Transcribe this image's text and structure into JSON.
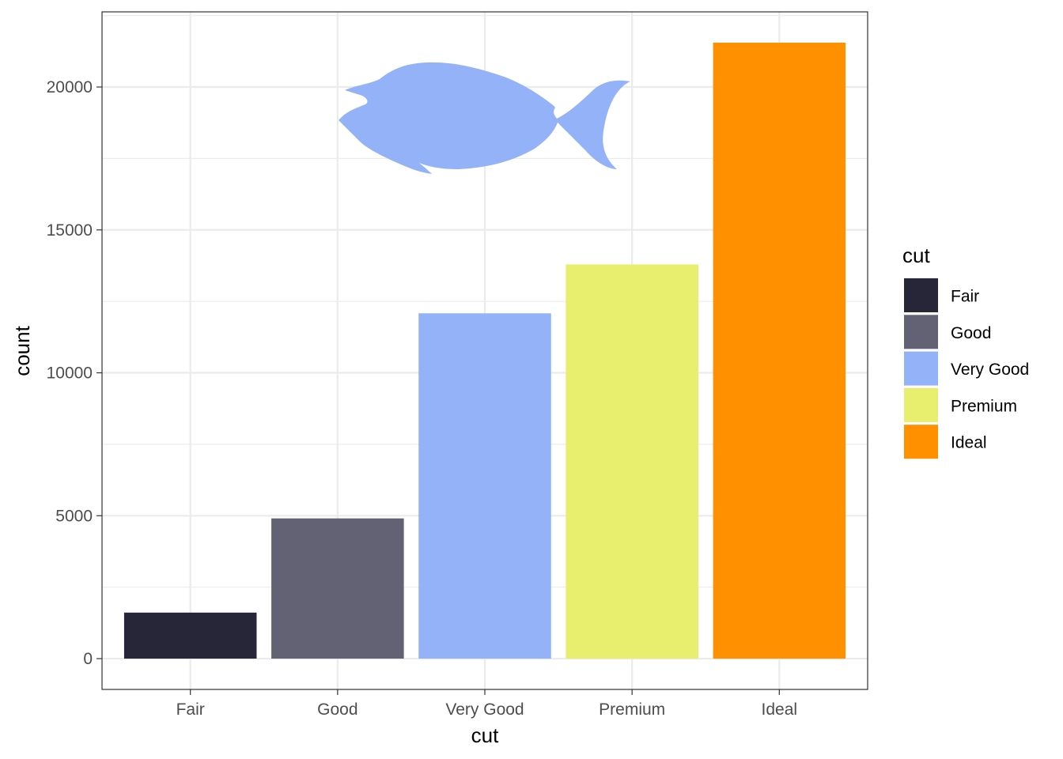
{
  "chart_data": {
    "type": "bar",
    "categories": [
      "Fair",
      "Good",
      "Very Good",
      "Premium",
      "Ideal"
    ],
    "values": [
      1610,
      4906,
      12082,
      13791,
      21551
    ],
    "colors": [
      "#272639",
      "#636174",
      "#93B2F8",
      "#E8EE6E",
      "#FF9000"
    ],
    "xlabel": "cut",
    "ylabel": "count",
    "ylim": [
      -1077.55,
      22628.55
    ],
    "yticks": [
      0,
      5000,
      10000,
      15000,
      20000
    ],
    "ytick_labels": [
      "0",
      "5000",
      "10000",
      "15000",
      "20000"
    ],
    "grid": true,
    "legend": {
      "title": "cut",
      "position": "right",
      "entries": [
        "Fair",
        "Good",
        "Very Good",
        "Premium",
        "Ideal"
      ]
    },
    "annotation": {
      "type": "image",
      "icon": "fish-silhouette-icon",
      "color": "#93B2F8"
    }
  }
}
